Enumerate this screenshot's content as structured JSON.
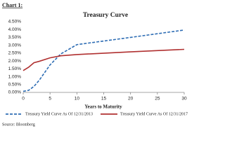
{
  "label": "Chart 1:",
  "chart_data": {
    "type": "line",
    "title": "Treasury Curve",
    "x_label": "Years to Maturity",
    "x": [
      0,
      1,
      2,
      3,
      5,
      7,
      10,
      20,
      30
    ],
    "series": [
      {
        "name": "Treasury Yield Curve As Of 12/31/2013",
        "color": "#2e6db4",
        "dash": true,
        "values": [
          0.07,
          0.13,
          0.38,
          0.78,
          1.75,
          2.45,
          3.04,
          3.5,
          3.97
        ]
      },
      {
        "name": "Treasury Yield Curve As Of 12/31/2017",
        "color": "#b03030",
        "dash": false,
        "values": [
          1.39,
          1.6,
          1.89,
          1.98,
          2.2,
          2.33,
          2.41,
          2.58,
          2.74
        ]
      }
    ],
    "xlim": [
      0,
      30
    ],
    "xticks": [
      0,
      5,
      10,
      15,
      20,
      25,
      30
    ],
    "ylim": [
      0,
      4.5
    ],
    "yticks": [
      {
        "value": 0,
        "label": "0.00%"
      },
      {
        "value": 0.5,
        "label": "0.50%"
      },
      {
        "value": 1,
        "label": "1.00%"
      },
      {
        "value": 1.5,
        "label": "1.50%"
      },
      {
        "value": 2,
        "label": "2.00%"
      },
      {
        "value": 2.5,
        "label": "2.50%"
      },
      {
        "value": 3,
        "label": "3.00%"
      },
      {
        "value": 3.5,
        "label": "3.50%"
      },
      {
        "value": 4,
        "label": "4.00%"
      },
      {
        "value": 4.5,
        "label": "4.50%"
      }
    ],
    "legend": "bottom",
    "source": "Source: Bloomberg"
  }
}
